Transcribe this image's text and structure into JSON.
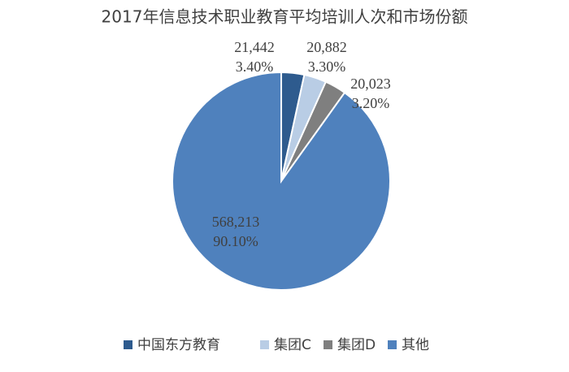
{
  "chart_data": {
    "type": "pie",
    "title": "2017年信息技术职业教育平均培训人次和市场份额",
    "categories": [
      "中国东方教育",
      "集团C",
      "集团D",
      "其他"
    ],
    "values": [
      21442,
      20882,
      20023,
      568213
    ],
    "value_labels": [
      "21,442",
      "20,882",
      "20,023",
      "568,213"
    ],
    "percent_labels": [
      "3.40%",
      "3.30%",
      "3.20%",
      "90.10%"
    ],
    "colors": [
      "#2e5b8e",
      "#b9cde5",
      "#7f7f7f",
      "#4f81bd"
    ],
    "legend": "bottom"
  }
}
